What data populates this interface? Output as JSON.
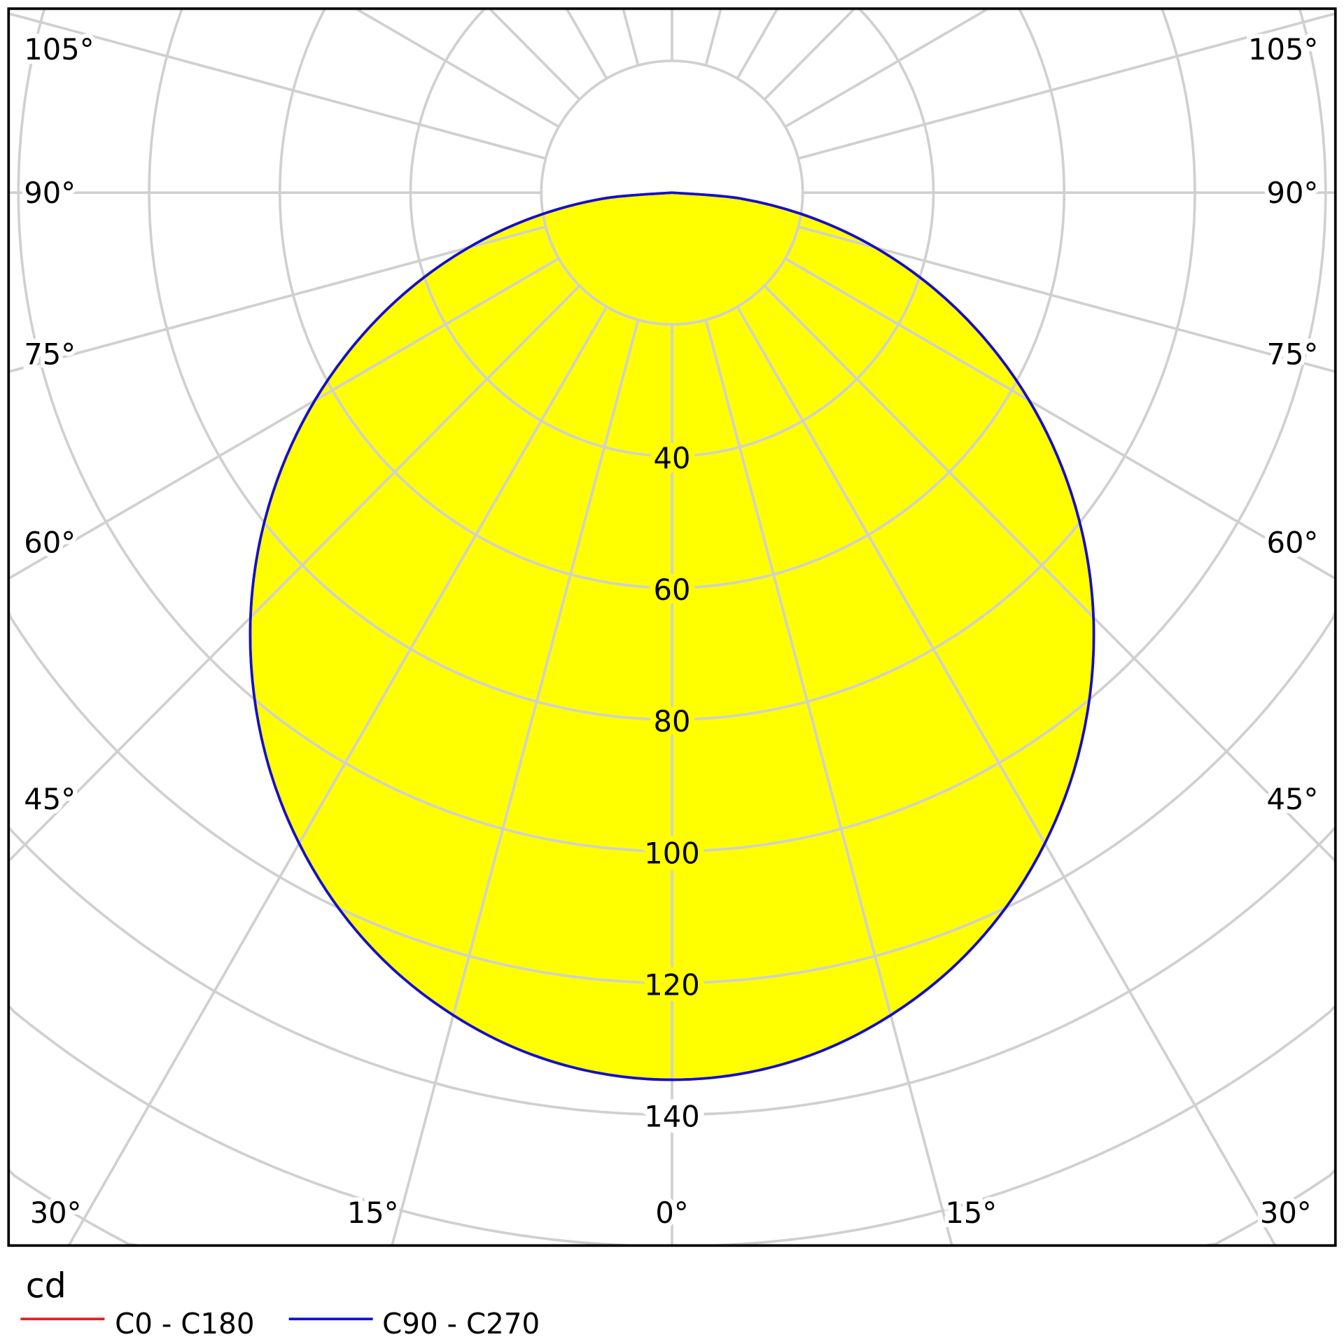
{
  "chart_data": {
    "type": "polar",
    "unit_label": "cd",
    "angle_unit": "degrees",
    "angle_labels": {
      "left": [
        "105°",
        "90°",
        "75°",
        "60°",
        "45°",
        "30°",
        "15°"
      ],
      "center": "0°",
      "right": [
        "15°",
        "30°",
        "45°",
        "60°",
        "75°",
        "90°",
        "105°"
      ]
    },
    "radial_ticks": [
      40,
      60,
      80,
      100,
      120,
      140
    ],
    "radial_tick_labels": [
      "40",
      "60",
      "80",
      "100",
      "120",
      "140"
    ],
    "radial_grid_step": 20,
    "angular_grid_step": 15,
    "grid": true,
    "legend_position": "bottom-left",
    "gamma": [
      0,
      5,
      10,
      15,
      20,
      25,
      30,
      35,
      40,
      45,
      50,
      55,
      60,
      65,
      70,
      75,
      80,
      85,
      90
    ],
    "series": [
      {
        "name": "C0 - C180",
        "color": "#e02020",
        "values": [
          134.7,
          134.1,
          132.3,
          129.3,
          125.3,
          120.2,
          114.1,
          107.2,
          99.5,
          91.2,
          82.3,
          72.9,
          63.1,
          53.0,
          42.7,
          32.2,
          21.5,
          10.8,
          0
        ]
      },
      {
        "name": "C90 - C270",
        "color": "#1010d0",
        "values": [
          134.7,
          134.1,
          132.3,
          129.3,
          125.3,
          120.2,
          114.1,
          107.2,
          99.5,
          91.2,
          82.3,
          72.9,
          63.1,
          53.0,
          42.7,
          32.2,
          21.5,
          10.8,
          0
        ]
      }
    ],
    "fill_color": "#ffff00",
    "grid_color": "#d0d0d0"
  }
}
